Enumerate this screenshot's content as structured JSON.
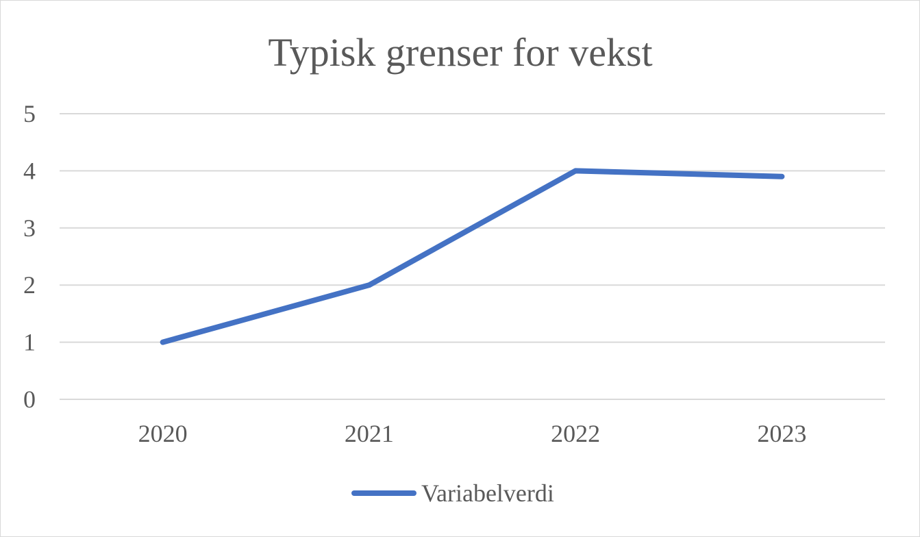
{
  "chart_data": {
    "type": "line",
    "title": "Typisk grenser for vekst",
    "xlabel": "",
    "ylabel": "",
    "categories": [
      "2020",
      "2021",
      "2022",
      "2023"
    ],
    "series": [
      {
        "name": "Variabelverdi",
        "values": [
          1,
          2,
          4,
          3.9
        ],
        "color": "#4472C4"
      }
    ],
    "ylim": [
      0,
      5
    ],
    "yticks": [
      "0",
      "1",
      "2",
      "3",
      "4",
      "5"
    ],
    "grid": true,
    "legend": "bottom"
  }
}
